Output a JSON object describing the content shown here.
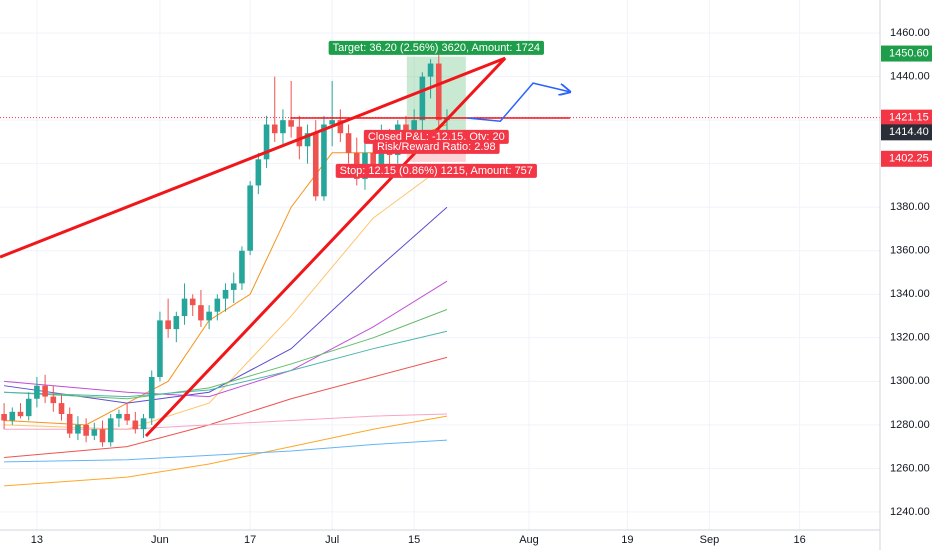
{
  "chart_data": {
    "type": "candlestick",
    "xlim": [
      -0.5,
      106.8
    ],
    "ylim": [
      1231.7,
      1475.2
    ],
    "xticks": [
      {
        "value": 4,
        "label": "13"
      },
      {
        "value": 19,
        "label": "Jun"
      },
      {
        "value": 30,
        "label": "17"
      },
      {
        "value": 40,
        "label": "Jul"
      },
      {
        "value": 50,
        "label": "15"
      },
      {
        "value": 64,
        "label": "Aug"
      },
      {
        "value": 76,
        "label": "19"
      },
      {
        "value": 86,
        "label": "Sep"
      },
      {
        "value": 97,
        "label": "16"
      }
    ],
    "yticks": [
      {
        "value": 1240,
        "label": "1240.00"
      },
      {
        "value": 1260,
        "label": "1260.00"
      },
      {
        "value": 1280,
        "label": "1280.00"
      },
      {
        "value": 1300,
        "label": "1300.00"
      },
      {
        "value": 1320,
        "label": "1320.00"
      },
      {
        "value": 1340,
        "label": "1340.00"
      },
      {
        "value": 1360,
        "label": "1360.00"
      },
      {
        "value": 1380,
        "label": "1380.00"
      },
      {
        "value": 1400,
        "label": "1400.00"
      },
      {
        "value": 1420,
        "label": "1420.00"
      },
      {
        "value": 1440,
        "label": "1440.00"
      },
      {
        "value": 1460,
        "label": "1460.00"
      }
    ],
    "grid": true,
    "up_color": "#26a69a",
    "down_color": "#ef5350",
    "open": [
      1285,
      1282,
      1286,
      1284,
      1292,
      1298,
      1293,
      1290,
      1285,
      1276,
      1280,
      1275,
      1278,
      1272,
      1283,
      1285,
      1282,
      1278,
      1283,
      1302,
      1328,
      1324,
      1330,
      1338,
      1335,
      1328,
      1332,
      1338,
      1342,
      1345,
      1360,
      1390,
      1402,
      1418,
      1414,
      1420,
      1417,
      1408,
      1414,
      1385,
      1418,
      1420,
      1414,
      1405,
      1393,
      1405,
      1398,
      1412,
      1404,
      1418,
      1410,
      1420,
      1440,
      1446,
      1420
    ],
    "high": [
      1290,
      1288,
      1290,
      1295,
      1302,
      1303,
      1298,
      1294,
      1288,
      1284,
      1283,
      1281,
      1282,
      1285,
      1287,
      1290,
      1286,
      1285,
      1305,
      1332,
      1338,
      1332,
      1345,
      1340,
      1342,
      1335,
      1340,
      1345,
      1350,
      1362,
      1392,
      1405,
      1422,
      1440,
      1425,
      1438,
      1422,
      1418,
      1420,
      1422,
      1438,
      1425,
      1418,
      1412,
      1410,
      1412,
      1418,
      1416,
      1420,
      1422,
      1425,
      1442,
      1448,
      1450,
      1425
    ],
    "low": [
      1278,
      1280,
      1283,
      1282,
      1288,
      1290,
      1286,
      1282,
      1274,
      1273,
      1272,
      1273,
      1270,
      1270,
      1279,
      1280,
      1276,
      1274,
      1280,
      1300,
      1320,
      1318,
      1326,
      1330,
      1325,
      1324,
      1328,
      1332,
      1336,
      1342,
      1358,
      1386,
      1398,
      1410,
      1408,
      1412,
      1402,
      1400,
      1383,
      1383,
      1408,
      1410,
      1400,
      1390,
      1388,
      1395,
      1396,
      1398,
      1400,
      1405,
      1406,
      1405,
      1430,
      1405,
      1415
    ],
    "close": [
      1282,
      1286,
      1284,
      1292,
      1298,
      1293,
      1290,
      1285,
      1276,
      1280,
      1275,
      1278,
      1272,
      1283,
      1285,
      1282,
      1278,
      1283,
      1302,
      1328,
      1324,
      1330,
      1338,
      1335,
      1328,
      1332,
      1338,
      1342,
      1345,
      1360,
      1390,
      1402,
      1418,
      1414,
      1420,
      1417,
      1408,
      1414,
      1385,
      1418,
      1420,
      1414,
      1405,
      1393,
      1405,
      1398,
      1412,
      1404,
      1418,
      1410,
      1420,
      1440,
      1446,
      1420,
      1421.15
    ],
    "moving_averages": [
      {
        "color": "#f7931a",
        "x": [
          0,
          10,
          20,
          25,
          30,
          35,
          40,
          45,
          54
        ],
        "values": [
          1282,
          1280,
          1300,
          1328,
          1340,
          1380,
          1405,
          1405,
          1418
        ]
      },
      {
        "color": "#ffc46b",
        "x": [
          0,
          15,
          25,
          35,
          45,
          54
        ],
        "values": [
          1280,
          1278,
          1290,
          1330,
          1375,
          1400
        ]
      },
      {
        "color": "#5c4ccf",
        "x": [
          0,
          15,
          25,
          35,
          45,
          54
        ],
        "values": [
          1298,
          1290,
          1295,
          1315,
          1350,
          1380
        ]
      },
      {
        "color": "#c04fd6",
        "x": [
          0,
          15,
          25,
          35,
          45,
          54
        ],
        "values": [
          1300,
          1295,
          1293,
          1305,
          1325,
          1346
        ]
      },
      {
        "color": "#66bb6a",
        "x": [
          0,
          15,
          25,
          35,
          45,
          54
        ],
        "values": [
          1295,
          1292,
          1297,
          1308,
          1320,
          1333
        ]
      },
      {
        "color": "#4db6ac",
        "x": [
          0,
          15,
          25,
          35,
          45,
          54
        ],
        "values": [
          1295,
          1293,
          1296,
          1305,
          1315,
          1323
        ]
      },
      {
        "color": "#ef5350",
        "x": [
          0,
          15,
          25,
          35,
          45,
          54
        ],
        "values": [
          1265,
          1270,
          1280,
          1292,
          1302,
          1311
        ]
      },
      {
        "color": "#f8a5c2",
        "x": [
          0,
          15,
          25,
          35,
          45,
          54
        ],
        "values": [
          1278,
          1278,
          1280,
          1282,
          1284,
          1285
        ]
      },
      {
        "color": "#ffa726",
        "x": [
          0,
          15,
          25,
          35,
          45,
          54
        ],
        "values": [
          1252,
          1256,
          1262,
          1270,
          1278,
          1284
        ]
      },
      {
        "color": "#64b5f6",
        "x": [
          0,
          15,
          25,
          35,
          45,
          54
        ],
        "values": [
          1263,
          1264,
          1266,
          1268,
          1271,
          1273
        ]
      }
    ],
    "trend_lines": [
      {
        "color": "#f0161a",
        "x": [
          -0.5,
          61.1
        ],
        "values": [
          1357.1,
          1448.5
        ]
      },
      {
        "color": "#f0161a",
        "x": [
          17.3,
          61.1
        ],
        "values": [
          1274.9,
          1448.5
        ]
      },
      {
        "color": "#f0161a",
        "x": [
          34.9,
          69
        ],
        "values": [
          1421,
          1421
        ]
      }
    ],
    "projection": {
      "color": "#2962ff",
      "x": [
        56.5,
        60.5,
        64.5,
        69
      ],
      "values": [
        1421,
        1419.5,
        1437,
        1433
      ]
    },
    "position": {
      "x": [
        49.1,
        56.3
      ],
      "entry": 1413,
      "target": 1449.2,
      "stop": 1400.85,
      "target_label": "Target: 36.20 (2.56%) 3620, Amount: 1724",
      "pnl_label": "Closed P&L: -12.15, Qty: 20",
      "ratio_label": "Risk/Reward Ratio: 2.98",
      "stop_label": "Stop: 12.15 (0.86%) 1215, Amount: 757"
    },
    "price_labels": [
      {
        "value": 1450.6,
        "label": "1450.60",
        "color": "#1e9e4a",
        "dotted_line": false
      },
      {
        "value": 1421.15,
        "label": "1421.15",
        "color": "#f23645",
        "dotted_line": true
      },
      {
        "value": 1414.4,
        "label": "1414.40",
        "color": "#2a2e39",
        "dotted_line": false
      },
      {
        "value": 1402.25,
        "label": "1402.25",
        "color": "#f23645",
        "dotted_line": false
      }
    ]
  }
}
